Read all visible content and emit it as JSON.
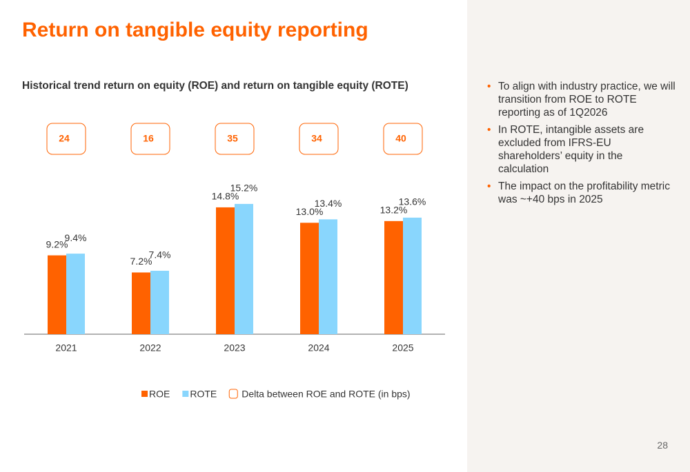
{
  "title": "Return on tangible equity reporting",
  "chart_data": {
    "type": "bar",
    "title": "Historical trend return on equity (ROE) and return on tangible equity (ROTE)",
    "categories": [
      "2021",
      "2022",
      "2023",
      "2024",
      "2025"
    ],
    "series": [
      {
        "name": "ROE",
        "color": "#ff6200",
        "values": [
          9.2,
          7.2,
          14.8,
          13.0,
          13.2
        ],
        "value_labels": [
          "9.2%",
          "7.2%",
          "14.8%",
          "13.0%",
          "13.2%"
        ]
      },
      {
        "name": "ROTE",
        "color": "#89d6fd",
        "values": [
          9.4,
          7.4,
          15.2,
          13.4,
          13.6
        ],
        "value_labels": [
          "9.4%",
          "7.4%",
          "15.2%",
          "13.4%",
          "13.6%"
        ]
      }
    ],
    "delta": {
      "name": "Delta between ROE and ROTE (in bps)",
      "color": "#ff6200",
      "values": [
        24,
        16,
        35,
        34,
        40
      ]
    },
    "ylim": [
      0,
      16
    ]
  },
  "bullets": [
    "To align with industry practice, we will transition from ROE to ROTE reporting as of 1Q2026",
    "In ROTE, intangible assets are excluded from IFRS-EU shareholders’ equity in the calculation",
    "The impact on the profitability metric was ~+40 bps in 2025"
  ],
  "page_number": 28
}
